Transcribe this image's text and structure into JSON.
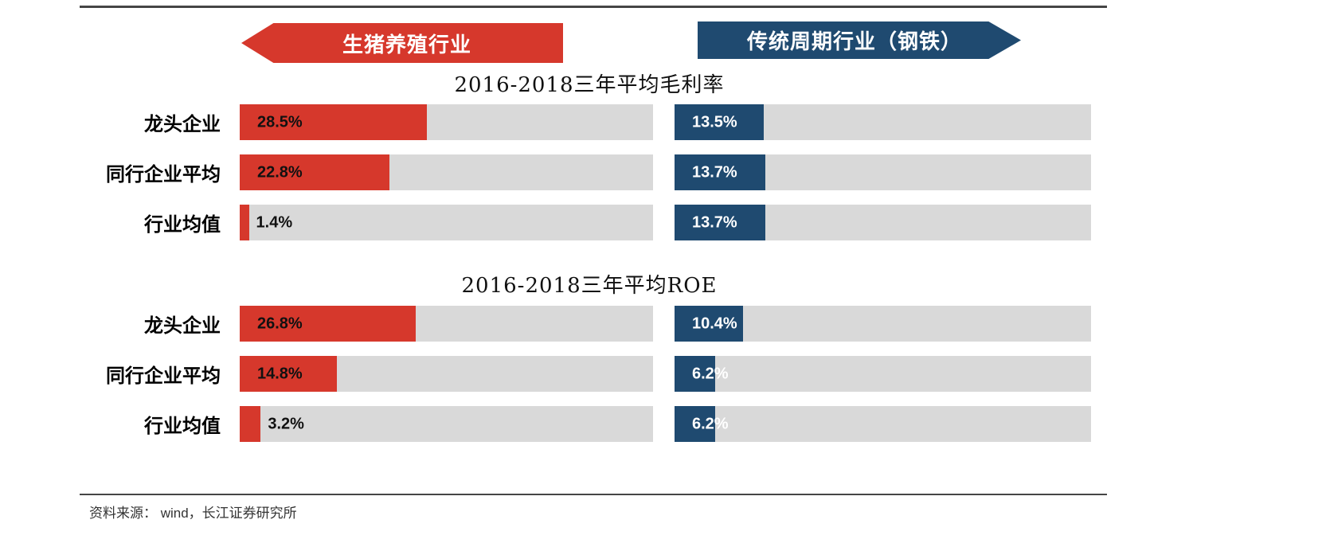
{
  "legend": {
    "left": {
      "label": "生猪养殖行业",
      "color": "#d6382c"
    },
    "right": {
      "label": "传统周期行业（钢铁）",
      "color": "#1f4a70"
    }
  },
  "source_note": "资料来源： wind，长江证券研究所",
  "chart_data": [
    {
      "type": "bar",
      "title": "2016-2018三年平均毛利率",
      "categories": [
        "龙头企业",
        "同行企业平均",
        "行业均值"
      ],
      "axis_max": 63,
      "track_color": "#d9d9d9",
      "legend_position": "top",
      "grid": false,
      "series": [
        {
          "name": "生猪养殖行业",
          "color": "#d6382c",
          "values": [
            28.5,
            22.8,
            1.4
          ],
          "labels": [
            "28.5%",
            "22.8%",
            "1.4%"
          ]
        },
        {
          "name": "传统周期行业（钢铁）",
          "color": "#1f4a70",
          "values": [
            13.5,
            13.7,
            13.7
          ],
          "labels": [
            "13.5%",
            "13.7%",
            "13.7%"
          ]
        }
      ]
    },
    {
      "type": "bar",
      "title": "2016-2018三年平均ROE",
      "categories": [
        "龙头企业",
        "同行企业平均",
        "行业均值"
      ],
      "axis_max": 63,
      "track_color": "#d9d9d9",
      "legend_position": "top",
      "grid": false,
      "series": [
        {
          "name": "生猪养殖行业",
          "color": "#d6382c",
          "values": [
            26.8,
            14.8,
            3.2
          ],
          "labels": [
            "26.8%",
            "14.8%",
            "3.2%"
          ]
        },
        {
          "name": "传统周期行业（钢铁）",
          "color": "#1f4a70",
          "values": [
            10.4,
            6.2,
            6.2
          ],
          "labels": [
            "10.4%",
            "6.2%",
            "6.2%"
          ]
        }
      ]
    }
  ]
}
